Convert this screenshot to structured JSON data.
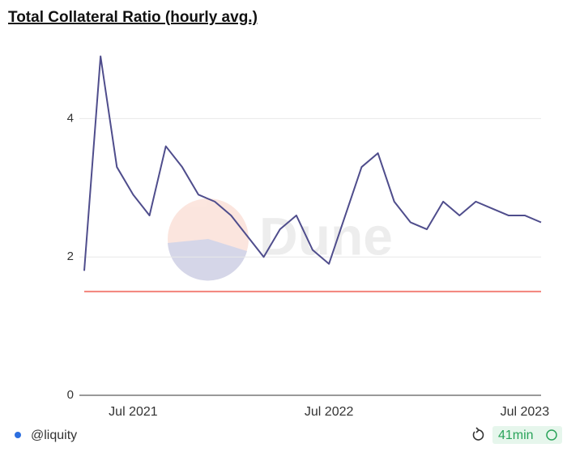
{
  "chart_data": {
    "type": "line",
    "title": "Total Collateral Ratio (hourly avg.)",
    "watermark": "Dune",
    "author": "@liquity",
    "refresh": "41min",
    "x": [
      "2021-04",
      "2021-05",
      "2021-06",
      "2021-07",
      "2021-08",
      "2021-09",
      "2021-10",
      "2021-11",
      "2021-12",
      "2022-01",
      "2022-02",
      "2022-03",
      "2022-04",
      "2022-05",
      "2022-06",
      "2022-07",
      "2022-08",
      "2022-09",
      "2022-10",
      "2022-11",
      "2022-12",
      "2023-01",
      "2023-02",
      "2023-03",
      "2023-04",
      "2023-05",
      "2023-06",
      "2023-07",
      "2023-08"
    ],
    "series": [
      {
        "color": "#4f4d8c",
        "values": [
          1.8,
          4.9,
          3.3,
          2.9,
          2.6,
          3.6,
          3.3,
          2.9,
          2.8,
          2.6,
          2.3,
          2.0,
          2.4,
          2.6,
          2.1,
          1.9,
          2.6,
          3.3,
          3.5,
          2.8,
          2.5,
          2.4,
          2.8,
          2.6,
          2.8,
          2.7,
          2.6,
          2.6,
          2.5
        ]
      }
    ],
    "threshold": {
      "value": 1.5,
      "color": "#f2837a"
    },
    "xlim": [
      "2021-04",
      "2023-08"
    ],
    "xticks": [
      {
        "value": "2021-07",
        "label": "Jul 2021"
      },
      {
        "value": "2022-07",
        "label": "Jul 2022"
      },
      {
        "value": "2023-07",
        "label": "Jul 2023"
      }
    ],
    "ylim": [
      0,
      5
    ],
    "yticks": [
      0,
      2,
      4
    ],
    "grid": true
  }
}
